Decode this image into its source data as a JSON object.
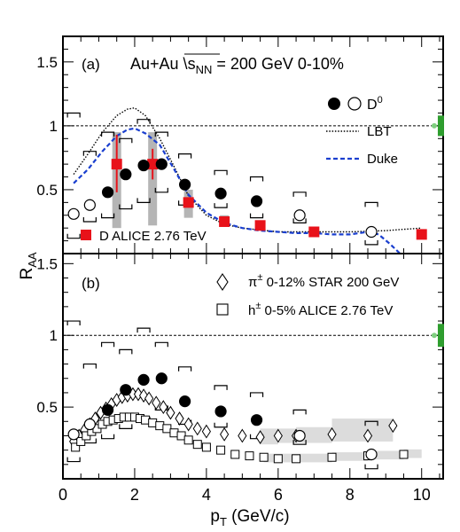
{
  "chart_data": [
    {
      "panel": "a",
      "type": "scatter",
      "panel_label": "(a)",
      "title": "Au+Au \\sNN = 200 GeV 0-10%",
      "title_parts": {
        "prefix": "Au+Au ",
        "root_symbol": "\\",
        "s": "s",
        "sub": "NN",
        "suffix": " = 200 GeV 0-10%"
      },
      "ylabel": {
        "main": "R",
        "sub": "AA"
      },
      "xlim": [
        0,
        10.6
      ],
      "ylim": [
        0,
        1.7
      ],
      "yticks": [
        0.5,
        1,
        1.5
      ],
      "reference_line": 1,
      "legend": [
        {
          "label": "D",
          "sup": "0",
          "marker": "circles"
        },
        {
          "label": "LBT",
          "style": "dotted"
        },
        {
          "label": "Duke",
          "style": "dashed",
          "color": "#1a3fcf"
        },
        {
          "label": "D ALICE 2.76 TeV",
          "marker": "square",
          "color": "#e8121a"
        }
      ],
      "series": [
        {
          "name": "D0",
          "marker": "circle",
          "points": [
            {
              "x": 0.3,
              "y": 0.31,
              "filled": false,
              "sys": [
                0.12,
                1.1
              ]
            },
            {
              "x": 0.75,
              "y": 0.38,
              "filled": false,
              "sys": [
                0.25,
                0.8
              ]
            },
            {
              "x": 1.25,
              "y": 0.48,
              "filled": true,
              "sys": [
                0.28,
                0.95
              ]
            },
            {
              "x": 1.75,
              "y": 0.62,
              "filled": true,
              "sys": [
                0.35,
                0.9
              ]
            },
            {
              "x": 2.25,
              "y": 0.69,
              "filled": true,
              "sys": [
                0.4,
                1.05
              ]
            },
            {
              "x": 2.75,
              "y": 0.7,
              "filled": true,
              "sys": [
                0.48,
                0.95
              ]
            },
            {
              "x": 3.4,
              "y": 0.54,
              "filled": true,
              "sys": [
                0.38,
                0.78
              ]
            },
            {
              "x": 4.4,
              "y": 0.47,
              "filled": true,
              "sys": [
                0.36,
                0.65
              ]
            },
            {
              "x": 5.4,
              "y": 0.41,
              "filled": true,
              "sys": [
                0.28,
                0.6
              ]
            },
            {
              "x": 6.6,
              "y": 0.3,
              "filled": false,
              "sys": [
                0.24,
                0.48
              ]
            },
            {
              "x": 8.6,
              "y": 0.17,
              "filled": false,
              "sys": [
                0.07,
                0.4
              ]
            }
          ]
        },
        {
          "name": "D ALICE 2.76 TeV",
          "marker": "square",
          "color": "#e8121a",
          "points": [
            {
              "x": 1.5,
              "y": 0.7,
              "err": [
                0.48,
                0.93
              ],
              "sys": [
                0.2,
                0.95
              ]
            },
            {
              "x": 2.5,
              "y": 0.7,
              "err": [
                0.58,
                0.82
              ],
              "sys": [
                0.22,
                0.95
              ]
            },
            {
              "x": 3.5,
              "y": 0.4,
              "err": [
                0.36,
                0.44
              ],
              "sys": [
                0.28,
                0.5
              ]
            },
            {
              "x": 4.5,
              "y": 0.25,
              "sys": [
                0.22,
                0.3
              ]
            },
            {
              "x": 5.5,
              "y": 0.22
            },
            {
              "x": 7.0,
              "y": 0.17
            },
            {
              "x": 10.0,
              "y": 0.15
            }
          ]
        },
        {
          "name": "LBT",
          "style": "line-dotted",
          "x": [
            0.3,
            0.7,
            1.1,
            1.5,
            1.8,
            2.0,
            2.3,
            2.7,
            3.1,
            3.5,
            4.0,
            4.5,
            5.0,
            6.0,
            7.0,
            8.0,
            9.0,
            10.0
          ],
          "y": [
            0.62,
            0.78,
            0.95,
            1.08,
            1.13,
            1.14,
            1.08,
            0.9,
            0.68,
            0.45,
            0.3,
            0.23,
            0.2,
            0.17,
            0.17,
            0.17,
            0.18,
            0.2
          ]
        },
        {
          "name": "Duke",
          "style": "line-dashed",
          "color": "#1a3fcf",
          "x": [
            0.3,
            0.7,
            1.1,
            1.5,
            1.8,
            2.0,
            2.3,
            2.7,
            3.1,
            3.5,
            4.0,
            4.5,
            5.0,
            5.5,
            6.0,
            6.5,
            7.0,
            7.5,
            8.0,
            8.5,
            8.8,
            9.1,
            9.4
          ],
          "y": [
            0.55,
            0.66,
            0.8,
            0.92,
            0.97,
            0.98,
            0.94,
            0.85,
            0.66,
            0.46,
            0.32,
            0.24,
            0.2,
            0.18,
            0.17,
            0.16,
            0.16,
            0.15,
            0.15,
            0.17,
            0.15,
            0.08,
            -0.02
          ]
        }
      ],
      "global_uncertainty": {
        "x": 10.5,
        "range": [
          0.92,
          1.08
        ],
        "color": "#2e9e2e"
      }
    },
    {
      "panel": "b",
      "type": "scatter",
      "panel_label": "(b)",
      "xlabel": {
        "main": "p",
        "sub": "T",
        "suffix": " (GeV/c)"
      },
      "ylabel": {
        "main": "R",
        "sub": "AA"
      },
      "xlim": [
        0,
        10.6
      ],
      "ylim": [
        0,
        1.57
      ],
      "xticks": [
        0,
        2,
        4,
        6,
        8,
        10
      ],
      "yticks": [
        0.5,
        1,
        1.5
      ],
      "reference_line": 1,
      "legend": [
        {
          "label": "π",
          "sup": "±",
          "suffix": " 0-12% STAR 200 GeV",
          "marker": "diamond"
        },
        {
          "label": "h",
          "sup": "±",
          "suffix": " 0-5% ALICE 2.76 TeV",
          "marker": "open-square"
        }
      ],
      "series": [
        {
          "name": "D0",
          "marker": "circle",
          "points": [
            {
              "x": 0.3,
              "y": 0.31,
              "filled": false,
              "sys": [
                0.12,
                1.1
              ]
            },
            {
              "x": 0.75,
              "y": 0.38,
              "filled": false,
              "sys": [
                0.25,
                0.8
              ]
            },
            {
              "x": 1.25,
              "y": 0.48,
              "filled": true,
              "sys": [
                0.28,
                0.95
              ]
            },
            {
              "x": 1.75,
              "y": 0.62,
              "filled": true,
              "sys": [
                0.35,
                0.9
              ]
            },
            {
              "x": 2.25,
              "y": 0.69,
              "filled": true,
              "sys": [
                0.4,
                1.05
              ]
            },
            {
              "x": 2.75,
              "y": 0.7,
              "filled": true,
              "sys": [
                0.48,
                0.95
              ]
            },
            {
              "x": 3.4,
              "y": 0.54,
              "filled": true,
              "sys": [
                0.38,
                0.78
              ]
            },
            {
              "x": 4.4,
              "y": 0.47,
              "filled": true,
              "sys": [
                0.36,
                0.65
              ]
            },
            {
              "x": 5.4,
              "y": 0.41,
              "filled": true,
              "sys": [
                0.28,
                0.6
              ]
            },
            {
              "x": 6.6,
              "y": 0.3,
              "filled": false,
              "sys": [
                0.24,
                0.48
              ]
            },
            {
              "x": 8.6,
              "y": 0.17,
              "filled": false,
              "sys": [
                0.07,
                0.4
              ]
            }
          ]
        },
        {
          "name": "π± 0-12% STAR 200 GeV",
          "marker": "diamond",
          "x": [
            0.3,
            0.45,
            0.6,
            0.75,
            0.9,
            1.05,
            1.2,
            1.35,
            1.5,
            1.65,
            1.8,
            1.95,
            2.1,
            2.25,
            2.4,
            2.6,
            2.8,
            3.0,
            3.25,
            3.5,
            3.75,
            4.0,
            4.5,
            5.0,
            5.5,
            6.0,
            6.5,
            7.5,
            8.5,
            9.2
          ],
          "y": [
            0.26,
            0.3,
            0.34,
            0.38,
            0.42,
            0.46,
            0.49,
            0.52,
            0.55,
            0.57,
            0.58,
            0.59,
            0.59,
            0.58,
            0.56,
            0.53,
            0.5,
            0.46,
            0.42,
            0.38,
            0.35,
            0.33,
            0.31,
            0.3,
            0.29,
            0.3,
            0.3,
            0.31,
            0.3,
            0.37
          ],
          "band_x": [
            5.5,
            6.0,
            6.5,
            7.5,
            9.2
          ],
          "band_y": [
            0.29,
            0.3,
            0.3,
            0.31,
            0.37
          ],
          "band_halfwidth": 0.05
        },
        {
          "name": "h± 0-5% ALICE 2.76 TeV",
          "marker": "open-square",
          "x": [
            0.35,
            0.5,
            0.65,
            0.8,
            0.95,
            1.1,
            1.25,
            1.4,
            1.55,
            1.7,
            1.85,
            2.0,
            2.15,
            2.3,
            2.5,
            2.7,
            2.9,
            3.1,
            3.3,
            3.5,
            3.75,
            4.0,
            4.4,
            4.8,
            5.2,
            5.6,
            6.0,
            6.5,
            7.5,
            8.5,
            9.5
          ],
          "y": [
            0.22,
            0.26,
            0.3,
            0.33,
            0.35,
            0.38,
            0.4,
            0.41,
            0.42,
            0.43,
            0.43,
            0.43,
            0.42,
            0.41,
            0.39,
            0.37,
            0.35,
            0.32,
            0.3,
            0.27,
            0.24,
            0.22,
            0.2,
            0.17,
            0.16,
            0.15,
            0.14,
            0.14,
            0.15,
            0.16,
            0.17
          ],
          "band_x": [
            5.6,
            6.5,
            7.5,
            8.5,
            9.5,
            10.0
          ],
          "band_y": [
            0.15,
            0.14,
            0.15,
            0.16,
            0.17,
            0.18
          ],
          "band_halfwidth": 0.025
        }
      ],
      "global_uncertainty": {
        "x": 10.5,
        "range": [
          0.92,
          1.08
        ],
        "color": "#2e9e2e"
      }
    }
  ]
}
